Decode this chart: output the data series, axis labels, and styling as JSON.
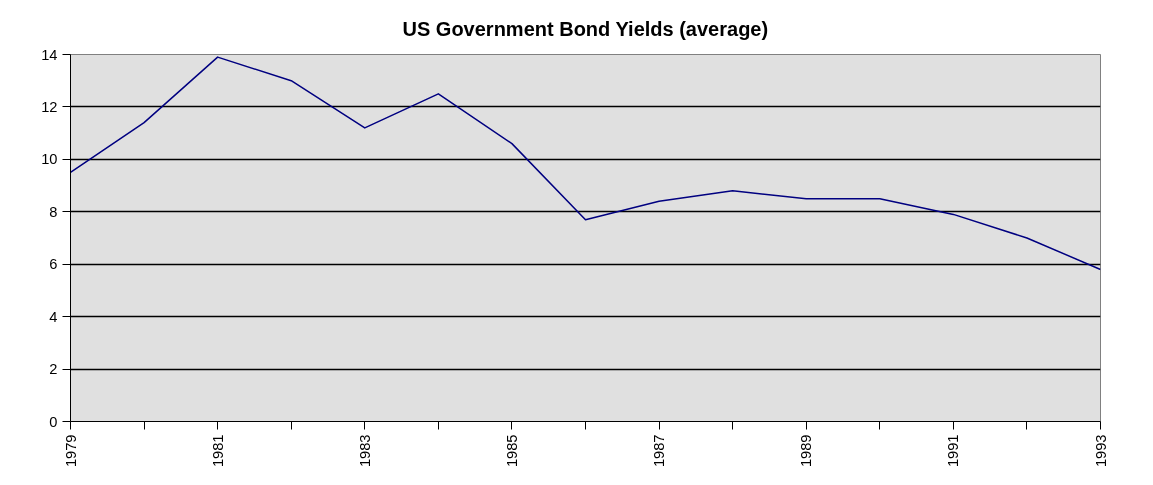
{
  "chart_data": {
    "type": "line",
    "title": "US Government Bond Yields (average)",
    "x": [
      1979,
      1980,
      1981,
      1982,
      1983,
      1984,
      1985,
      1986,
      1987,
      1988,
      1989,
      1990,
      1991,
      1992,
      1993
    ],
    "series": [
      {
        "color": "#000080",
        "values": [
          9.5,
          11.4,
          13.9,
          13.0,
          11.2,
          12.5,
          10.6,
          7.7,
          8.4,
          8.8,
          8.5,
          8.5,
          7.9,
          7.0,
          5.8
        ]
      }
    ],
    "xlim": [
      1979,
      1993
    ],
    "xticks": [
      1979,
      {
        "value": 1980,
        "label": null
      },
      1981,
      {
        "value": 1982,
        "label": null
      },
      1983,
      {
        "value": 1984,
        "label": null
      },
      1985,
      {
        "value": 1986,
        "label": null
      },
      1987,
      {
        "value": 1988,
        "label": null
      },
      1989,
      {
        "value": 1990,
        "label": null
      },
      1991,
      {
        "value": 1992,
        "label": null
      },
      1993
    ],
    "ylim": [
      0,
      14
    ],
    "yticks": [
      0,
      2,
      4,
      6,
      8,
      10,
      12,
      14
    ],
    "grid": "y",
    "marker": "none",
    "line_style": "solid"
  }
}
